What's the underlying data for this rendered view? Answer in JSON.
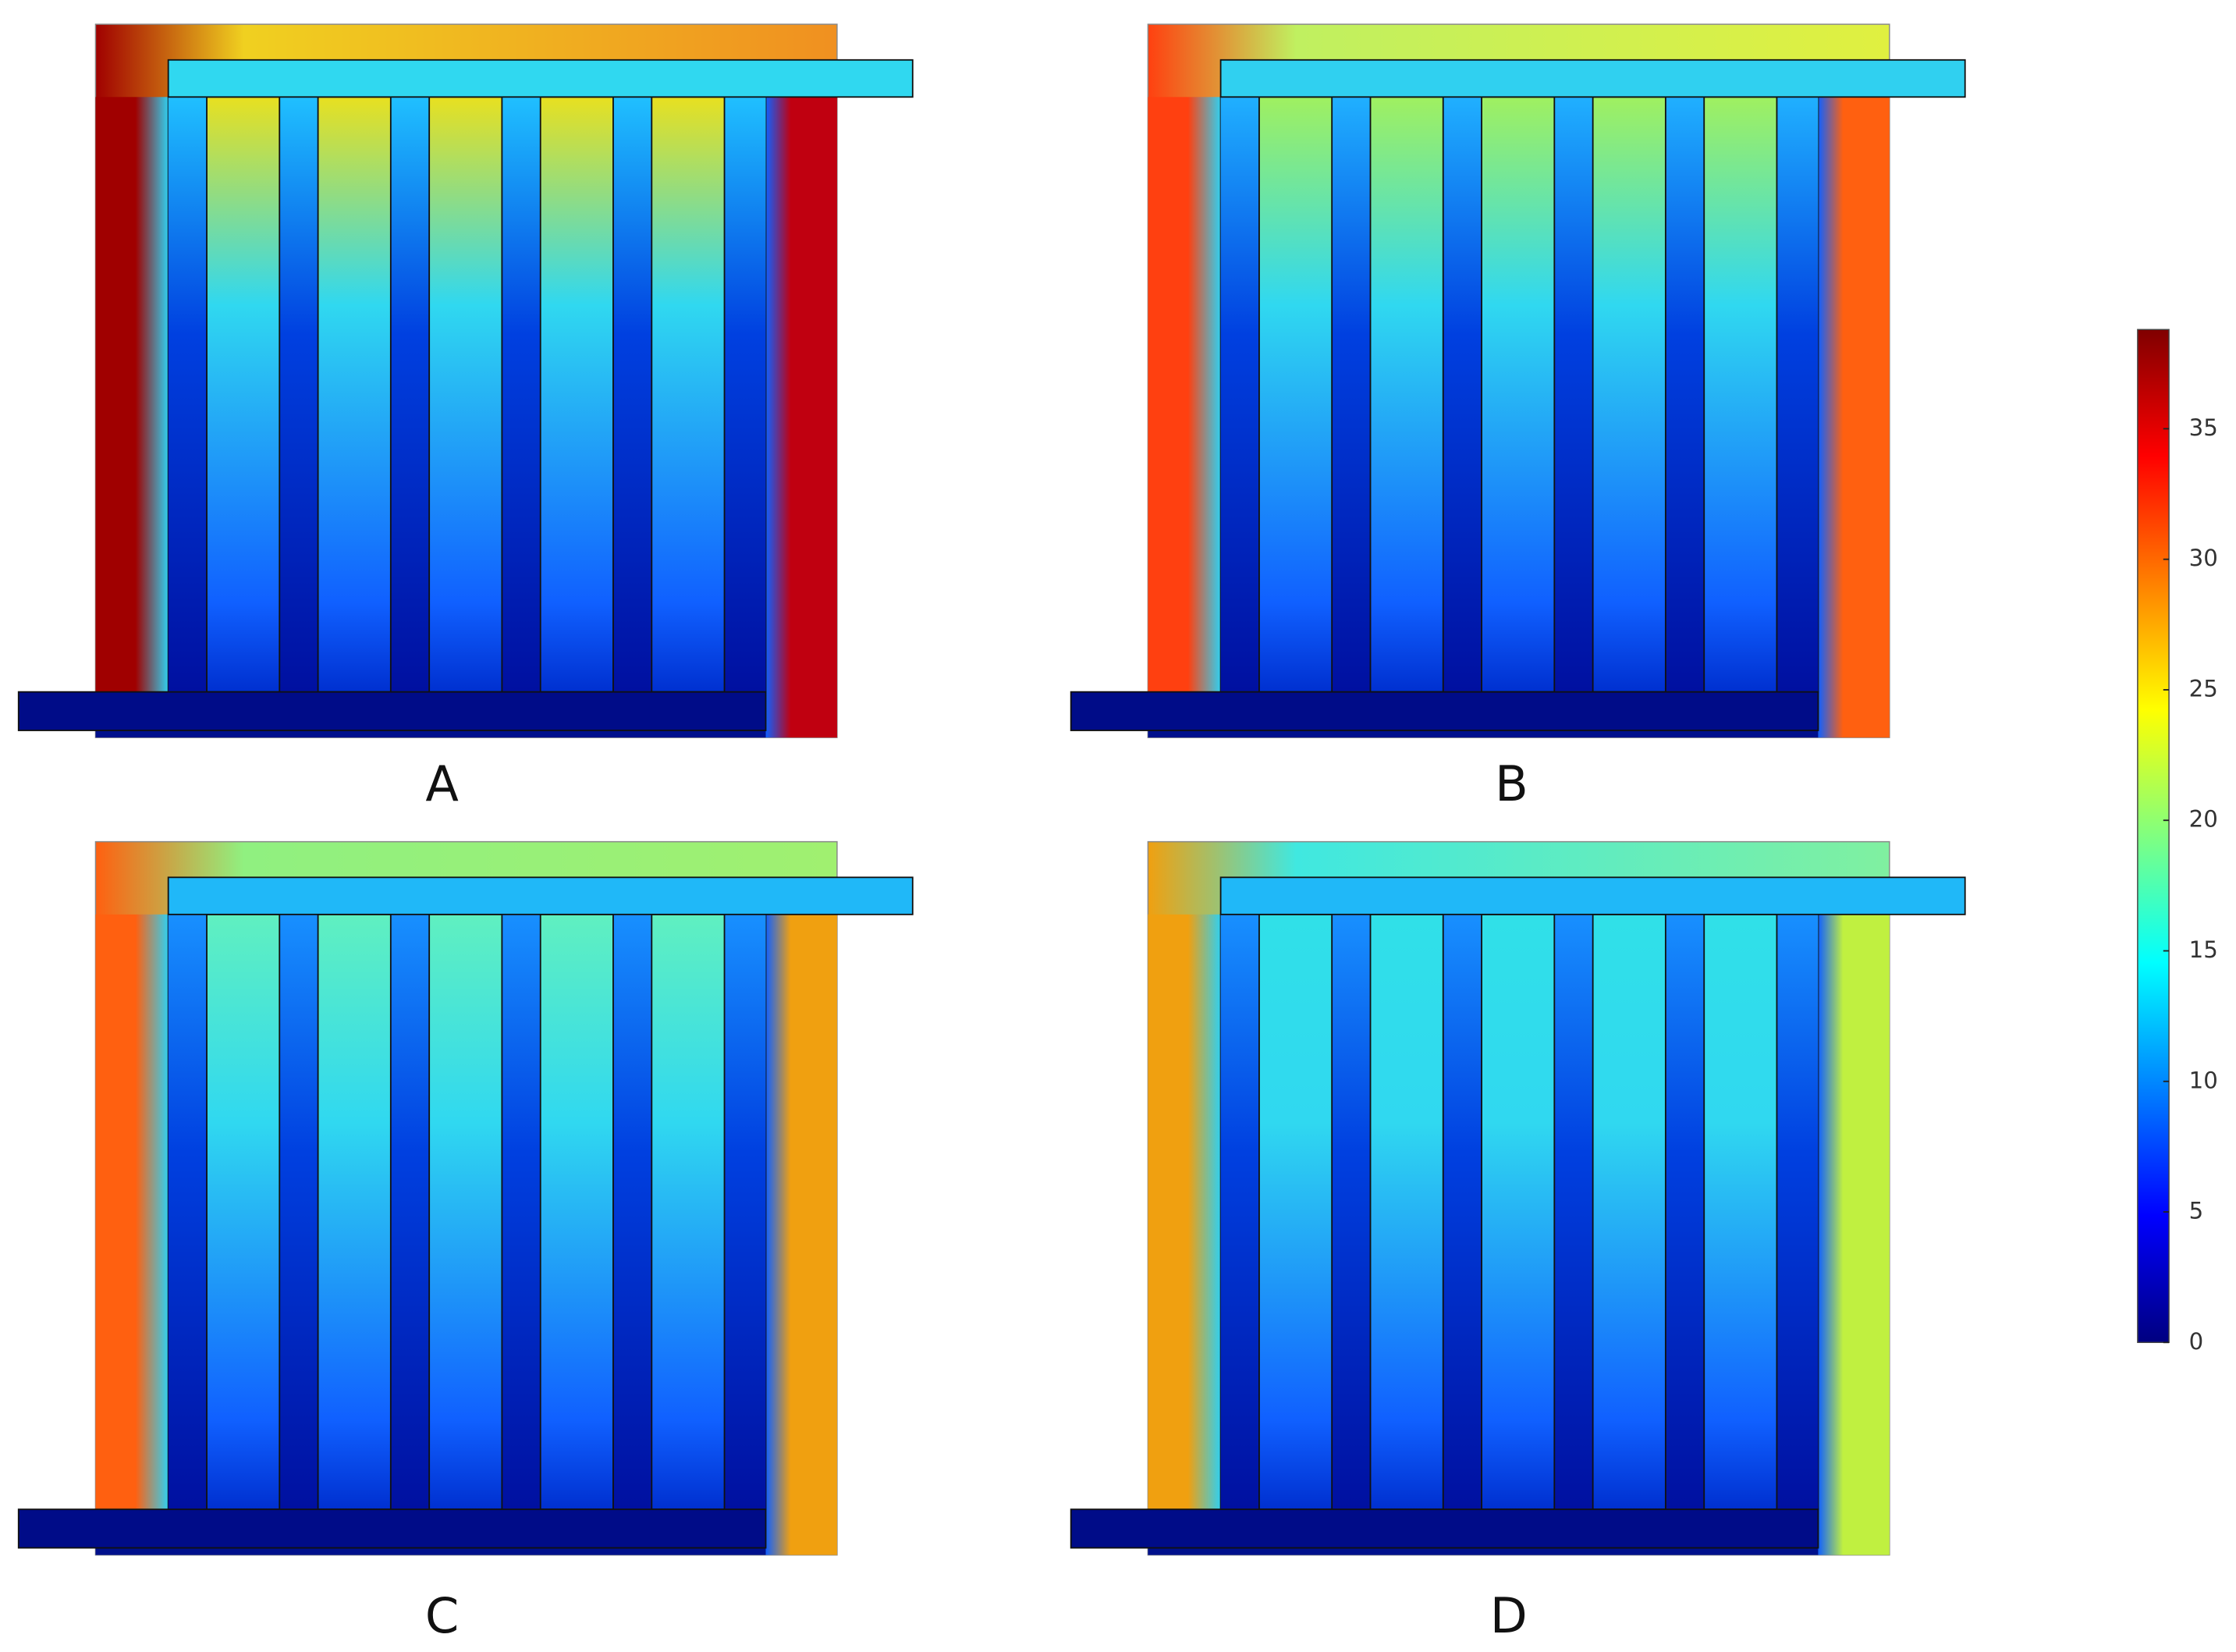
{
  "panels": [
    {
      "label": "A"
    },
    {
      "label": "B"
    },
    {
      "label": "C"
    },
    {
      "label": "D"
    }
  ],
  "colorbar": {
    "lim": [
      0,
      38.8
    ],
    "ticks": [
      0,
      5,
      10,
      15,
      20,
      25,
      30,
      35
    ]
  }
}
